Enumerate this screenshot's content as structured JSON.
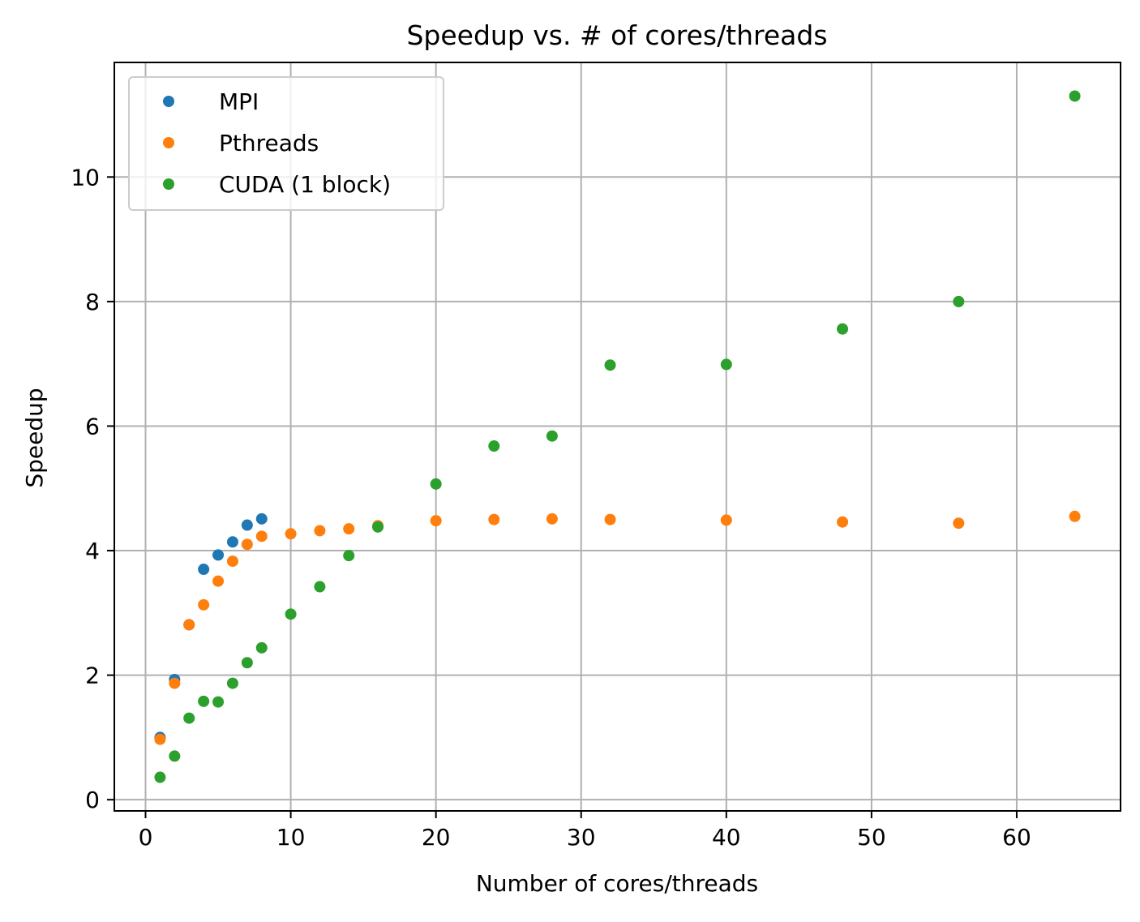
{
  "chart_data": {
    "type": "scatter",
    "title": "Speedup vs. # of cores/threads",
    "xlabel": "Number of cores/threads",
    "ylabel": "Speedup",
    "xlim": [
      -2.15,
      67.15
    ],
    "ylim": [
      -0.18,
      11.84
    ],
    "xticks": [
      0,
      10,
      20,
      30,
      40,
      50,
      60
    ],
    "yticks": [
      0,
      2,
      4,
      6,
      8,
      10
    ],
    "grid": true,
    "legend_position": "top-left",
    "series": [
      {
        "name": "MPI",
        "color": "#1f77b4",
        "x": [
          1,
          2,
          3,
          4,
          5,
          6,
          7,
          8
        ],
        "y": [
          1.0,
          1.93,
          2.81,
          3.7,
          3.93,
          4.14,
          4.41,
          4.51
        ]
      },
      {
        "name": "Pthreads",
        "color": "#ff7f0e",
        "x": [
          1,
          2,
          3,
          4,
          5,
          6,
          7,
          8,
          10,
          12,
          14,
          16,
          20,
          24,
          28,
          32,
          40,
          48,
          56,
          64
        ],
        "y": [
          0.97,
          1.87,
          2.81,
          3.13,
          3.51,
          3.83,
          4.1,
          4.23,
          4.27,
          4.32,
          4.35,
          4.4,
          4.48,
          4.5,
          4.51,
          4.5,
          4.49,
          4.46,
          4.44,
          4.55
        ]
      },
      {
        "name": "CUDA (1 block)",
        "color": "#2ca02c",
        "x": [
          1,
          2,
          3,
          4,
          5,
          6,
          7,
          8,
          10,
          12,
          14,
          16,
          20,
          24,
          28,
          32,
          40,
          48,
          56,
          64
        ],
        "y": [
          0.36,
          0.7,
          1.31,
          1.58,
          1.57,
          1.87,
          2.2,
          2.44,
          2.98,
          3.42,
          3.92,
          4.38,
          5.07,
          5.68,
          5.84,
          6.98,
          6.99,
          7.56,
          8.0,
          11.3
        ]
      }
    ]
  }
}
